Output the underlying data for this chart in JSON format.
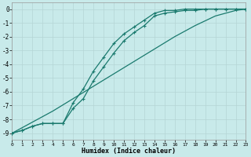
{
  "xlabel": "Humidex (Indice chaleur)",
  "bg_color": "#c8eaea",
  "grid_color": "#b5d5d5",
  "line_color": "#1a7a6e",
  "xlim": [
    0,
    23
  ],
  "ylim": [
    -9.5,
    0.5
  ],
  "xticks": [
    0,
    1,
    2,
    3,
    4,
    5,
    6,
    7,
    8,
    9,
    10,
    11,
    12,
    13,
    14,
    15,
    16,
    17,
    18,
    19,
    20,
    21,
    22,
    23
  ],
  "yticks": [
    0,
    -1,
    -2,
    -3,
    -4,
    -5,
    -6,
    -7,
    -8,
    -9
  ],
  "s1_x": [
    0,
    1,
    2,
    3,
    4,
    5,
    6,
    7,
    8,
    9,
    10,
    11,
    12,
    13,
    14,
    15,
    16,
    17,
    18,
    19,
    20,
    21,
    22,
    23
  ],
  "s1_y": [
    -9.0,
    -8.8,
    -8.5,
    -8.3,
    -8.3,
    -8.3,
    -6.8,
    -5.8,
    -4.5,
    -3.5,
    -2.5,
    -1.8,
    -1.3,
    -0.8,
    -0.3,
    -0.1,
    -0.1,
    0.0,
    0.0,
    0.0,
    0.0,
    0.0,
    0.0,
    0.0
  ],
  "s2_x": [
    0,
    1,
    2,
    3,
    4,
    5,
    6,
    7,
    8,
    9,
    10,
    11,
    12,
    13,
    14,
    15,
    16,
    17,
    18,
    19,
    20,
    21,
    22,
    23
  ],
  "s2_y": [
    -9.0,
    -8.8,
    -8.5,
    -8.3,
    -8.3,
    -8.3,
    -7.2,
    -6.5,
    -5.2,
    -4.2,
    -3.2,
    -2.3,
    -1.7,
    -1.2,
    -0.5,
    -0.3,
    -0.2,
    -0.1,
    -0.1,
    0.0,
    0.0,
    0.0,
    0.0,
    0.0
  ],
  "s3_x": [
    0,
    2,
    4,
    6,
    8,
    10,
    12,
    14,
    16,
    18,
    20,
    22,
    23
  ],
  "s3_y": [
    -9.0,
    -8.2,
    -7.4,
    -6.5,
    -5.6,
    -4.7,
    -3.8,
    -2.9,
    -2.0,
    -1.2,
    -0.5,
    -0.1,
    0.0
  ]
}
